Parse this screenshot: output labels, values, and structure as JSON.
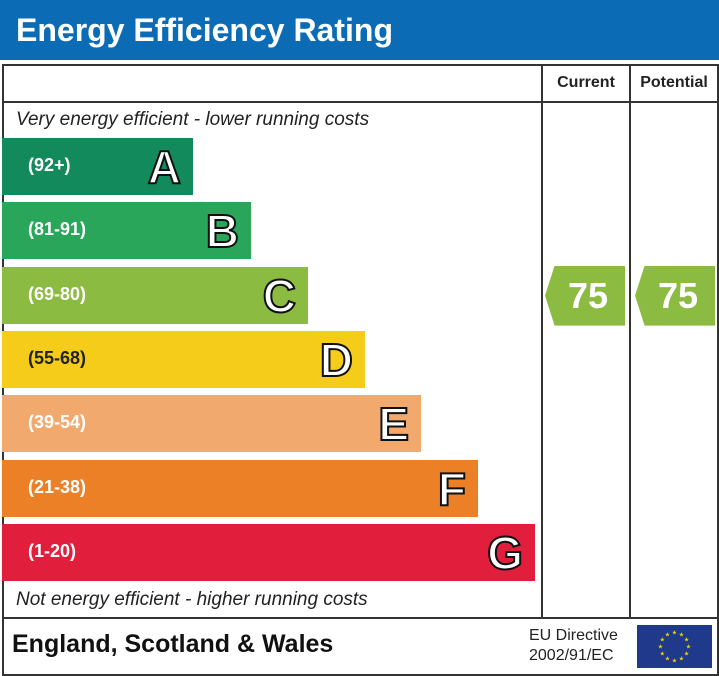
{
  "title": "Energy Efficiency Rating",
  "columns": {
    "current": "Current",
    "potential": "Potential"
  },
  "top_note": "Very energy efficient - lower running costs",
  "bottom_note": "Not energy efficient - higher running costs",
  "footer": {
    "country": "England, Scotland & Wales",
    "directive_line1": "EU Directive",
    "directive_line2": "2002/91/EC"
  },
  "colors": {
    "header": "#0b6cb5",
    "rating_arrow": "#8cbb42"
  },
  "chart_data": {
    "type": "bar",
    "categories": [
      "A",
      "B",
      "C",
      "D",
      "E",
      "F",
      "G"
    ],
    "ranges": [
      "(92+)",
      "(81-91)",
      "(69-80)",
      "(55-68)",
      "(39-54)",
      "(21-38)",
      "(1-20)"
    ],
    "colors": [
      "#138a5b",
      "#2aa65a",
      "#8cbb42",
      "#f5cc1a",
      "#f2a96e",
      "#ec8026",
      "#e11f3d"
    ],
    "current": 75,
    "potential": 75,
    "current_band": "C",
    "potential_band": "C"
  }
}
